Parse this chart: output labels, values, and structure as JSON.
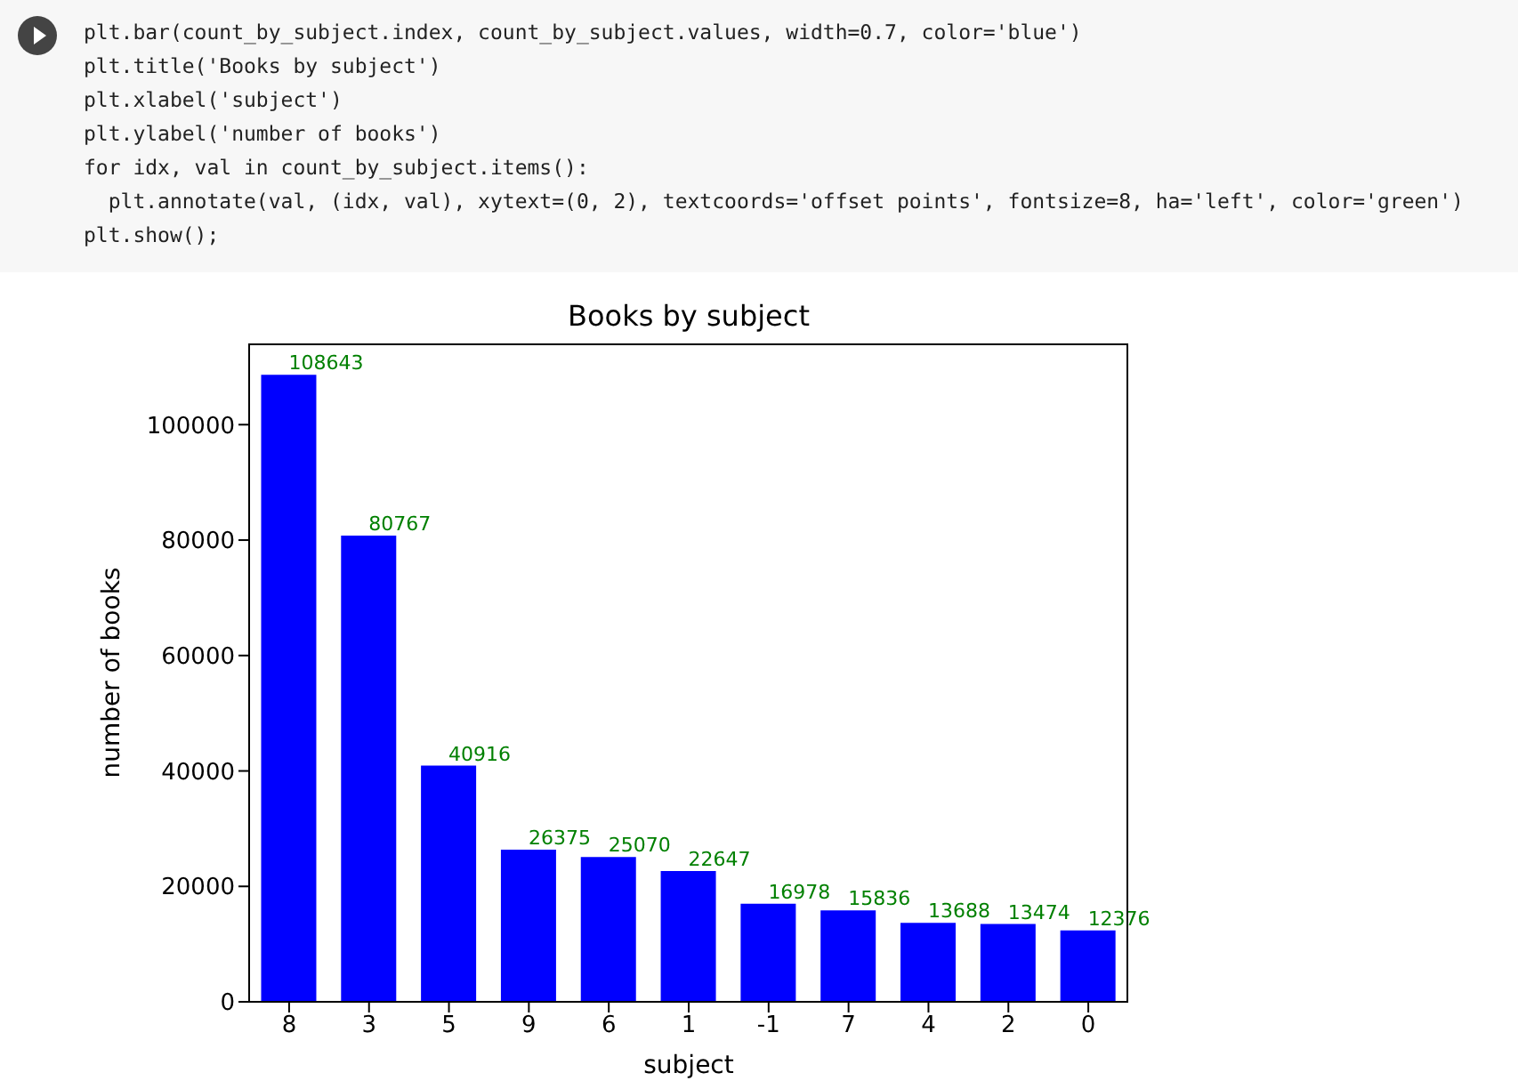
{
  "chart_data": {
    "type": "bar",
    "title": "Books by subject",
    "xlabel": "subject",
    "ylabel": "number of books",
    "categories": [
      "8",
      "3",
      "5",
      "9",
      "6",
      "1",
      "-1",
      "7",
      "4",
      "2",
      "0"
    ],
    "values": [
      108643,
      80767,
      40916,
      26375,
      25070,
      22647,
      16978,
      15836,
      13688,
      13474,
      12376
    ],
    "color": "#0000ff",
    "data_labels": true,
    "ylim": [
      0,
      114075
    ],
    "yticks": [
      0,
      20000,
      40000,
      60000,
      80000,
      100000
    ],
    "annotations": [
      "plt.bar(count_by_subject.index, count_by_subject.values, width=0.7, color='blue')",
      "plt.title('Books by subject')",
      "plt.xlabel('subject')",
      "plt.ylabel('number of books')",
      "for idx, val in count_by_subject.items():",
      "  plt.annotate(val, (idx, val), xytext=(0, 2), textcoords='offset points', fontsize=8, ha='left', color='green')",
      "plt.show();"
    ]
  }
}
